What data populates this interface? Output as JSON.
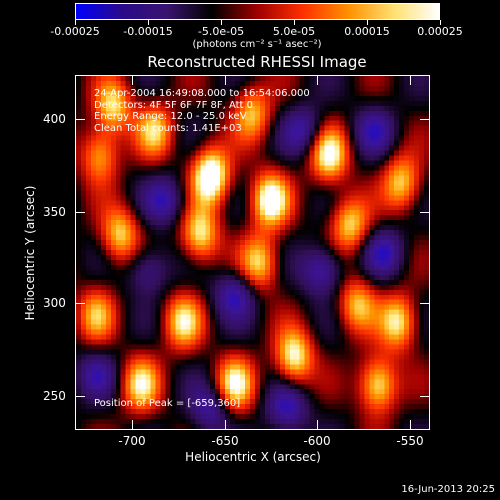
{
  "colorbar": {
    "ticks": [
      "-0.00025",
      "-0.00015",
      "-5.0e-05",
      "5.0e-05",
      "0.00015",
      "0.00025"
    ],
    "units": "(photons cm⁻² s⁻¹ asec⁻²)",
    "colors": [
      "#0000ff",
      "#2a0a8a",
      "#3a1470",
      "#000000",
      "#a00000",
      "#ff3000",
      "#ff9000",
      "#ffe070",
      "#ffffff"
    ]
  },
  "plot": {
    "title": "Reconstructed RHESSI Image",
    "info_lines": [
      "24-Apr-2004 16:49:08.000 to 16:54:06.000",
      "Detectors: 4F 5F 6F 7F 8F, Att 0",
      "Energy Range: 12.0 - 25.0 keV",
      "Clean    Total counts: 1.41E+03"
    ],
    "peak": "Position of Peak = [-659,360]",
    "x_ticks": [
      "-700",
      "-650",
      "-600",
      "-550"
    ],
    "y_ticks": [
      "400",
      "350",
      "300",
      "250"
    ],
    "xlabel": "Heliocentric X (arcsec)",
    "ylabel": "Heliocentric Y (arcsec)"
  },
  "footer": {
    "timestamp": "16-Jun-2013 20:25"
  }
}
